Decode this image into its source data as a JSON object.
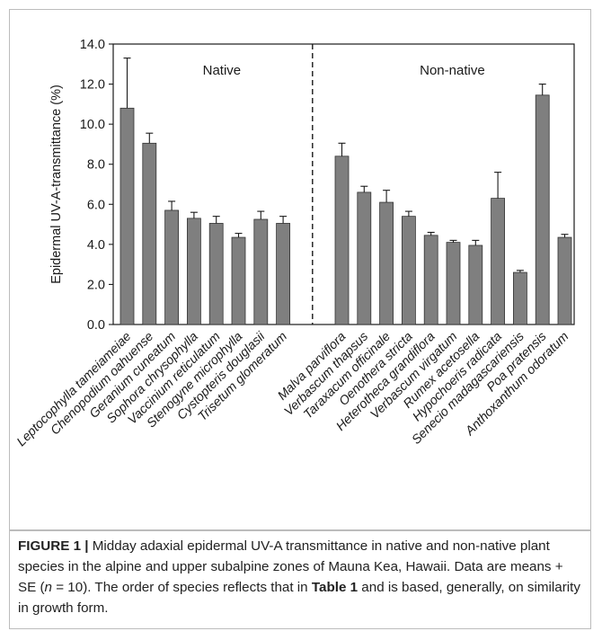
{
  "chart_data": {
    "type": "bar",
    "ylabel": "Epidermal UV-A-transmittance (%)",
    "ylim": [
      0,
      14.0
    ],
    "yticks": [
      "0.0",
      "2.0",
      "4.0",
      "6.0",
      "8.0",
      "10.0",
      "12.0",
      "14.0"
    ],
    "groups": [
      {
        "label": "Native",
        "categories": [
          "Leptocophylla tameiameiae",
          "Chenopodium oahuense",
          "Geranium cuneatum",
          "Sophora chrysophylla",
          "Vaccinium reticulatum",
          "Stenogyne microphylla",
          "Cystopteris douglasii",
          "Trisetum glomeratum"
        ],
        "values": [
          10.8,
          9.05,
          5.7,
          5.3,
          5.05,
          4.35,
          5.25,
          5.05
        ],
        "errors": [
          2.5,
          0.5,
          0.45,
          0.3,
          0.35,
          0.2,
          0.4,
          0.35
        ]
      },
      {
        "label": "Non-native",
        "categories": [
          "Malva parviflora",
          "Verbascum thapsus",
          "Taraxacum officinale",
          "Oenothera stricta",
          "Heterotheca grandiflora",
          "Verbascum virgatum",
          "Rumex acetosella",
          "Hypochoeris radicata",
          "Senecio madagascariensis",
          "Poa pratensis",
          "Anthoxanthum odoratum"
        ],
        "values": [
          8.4,
          6.6,
          6.1,
          5.4,
          4.45,
          4.1,
          3.95,
          6.3,
          2.6,
          11.45,
          4.35
        ],
        "errors": [
          0.65,
          0.3,
          0.6,
          0.25,
          0.15,
          0.1,
          0.25,
          1.3,
          0.1,
          0.55,
          0.15
        ]
      }
    ],
    "bar_color": "#7f7f7f",
    "divider": "dashed",
    "grid": false,
    "legend": "none"
  },
  "caption": {
    "label": "FIGURE 1 |",
    "t1": " Midday adaxial epidermal UV-A transmittance in native and non-native plant species in the alpine and upper subalpine zones of Mauna Kea, Hawaii. Data are means + SE (",
    "n": "n",
    "t2": " = 10). The order of species reflects that in ",
    "table_ref": "Table 1",
    "t3": " and is based, generally, on similarity in growth form."
  }
}
